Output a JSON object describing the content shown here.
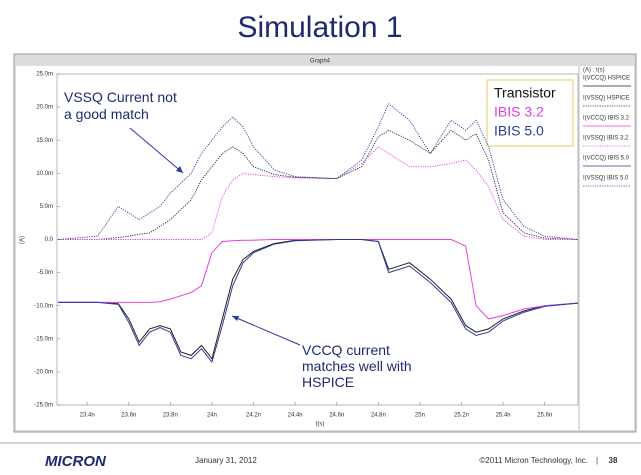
{
  "slide": {
    "title": "Simulation 1",
    "logo": "MICRON",
    "date": "January 31, 2012",
    "copyright": "©2011 Micron Technology, Inc.",
    "separator": "|",
    "page": "38"
  },
  "chart_data": {
    "type": "line",
    "title": "Graph4",
    "xlabel": "t(s)",
    "ylabel": "(A)",
    "legend_title": "(A) : t(s)",
    "legend": "right",
    "grid": false,
    "xlim": [
      23.255,
      25.76
    ],
    "xticks": [
      {
        "value": 23.4,
        "label": "23.4n"
      },
      {
        "value": 23.6,
        "label": "23.6n"
      },
      {
        "value": 23.8,
        "label": "23.8n"
      },
      {
        "value": 24.0,
        "label": "24n"
      },
      {
        "value": 24.2,
        "label": "24.2n"
      },
      {
        "value": 24.4,
        "label": "24.4n"
      },
      {
        "value": 24.6,
        "label": "24.6n"
      },
      {
        "value": 24.8,
        "label": "24.8n"
      },
      {
        "value": 25.0,
        "label": "25n"
      },
      {
        "value": 25.2,
        "label": "25.2n"
      },
      {
        "value": 25.4,
        "label": "25.4n"
      },
      {
        "value": 25.6,
        "label": "25.6n"
      }
    ],
    "ylim": [
      -25,
      25
    ],
    "yticks": [
      {
        "value": 25,
        "label": "25.0m"
      },
      {
        "value": 20,
        "label": "20.0m"
      },
      {
        "value": 15,
        "label": "15.0m"
      },
      {
        "value": 10,
        "label": "10.0m"
      },
      {
        "value": 5,
        "label": "5.0m"
      },
      {
        "value": 0,
        "label": "0.0"
      },
      {
        "value": -5,
        "label": "-5.0m"
      },
      {
        "value": -10,
        "label": "-10.0m"
      },
      {
        "value": -15,
        "label": "-15.0m"
      },
      {
        "value": -20,
        "label": "-20.0m"
      },
      {
        "value": -25,
        "label": "-25.0m"
      }
    ],
    "x": [
      23.26,
      23.45,
      23.55,
      23.6,
      23.65,
      23.7,
      23.75,
      23.8,
      23.85,
      23.9,
      23.95,
      24.0,
      24.05,
      24.1,
      24.15,
      24.2,
      24.3,
      24.4,
      24.6,
      24.72,
      24.8,
      24.85,
      24.95,
      25.05,
      25.15,
      25.22,
      25.27,
      25.33,
      25.4,
      25.5,
      25.6,
      25.76
    ],
    "series": [
      {
        "name": "I(VCCQ) HSPICE",
        "color": "#222222",
        "style": "solid",
        "values": [
          -9.5,
          -9.5,
          -9.7,
          -12,
          -15.5,
          -13.5,
          -13,
          -13.5,
          -17,
          -17.5,
          -16,
          -18,
          -12,
          -6,
          -3,
          -1.8,
          -0.6,
          -0.1,
          0,
          0,
          -0.3,
          -4.5,
          -3.5,
          -6,
          -9,
          -13,
          -14,
          -13.5,
          -12,
          -10.8,
          -10,
          -9.6
        ]
      },
      {
        "name": "I(VSSQ) HSPICE",
        "color": "#222222",
        "style": "dotted",
        "values": [
          0,
          0,
          0.3,
          0.5,
          0.8,
          1,
          2,
          3,
          4.5,
          6,
          9,
          11,
          13,
          14,
          13,
          11,
          9.8,
          9.4,
          9.2,
          11,
          15.5,
          16.5,
          15,
          13,
          16.5,
          15,
          16,
          12,
          4,
          1,
          0.2,
          0
        ]
      },
      {
        "name": "I(VCCQ) IBIS 3.2",
        "color": "#e040e0",
        "style": "solid",
        "values": [
          -9.5,
          -9.5,
          -9.5,
          -9.5,
          -9.5,
          -9.5,
          -9.4,
          -9,
          -8.5,
          -8,
          -7,
          -2,
          -0.3,
          -0.2,
          -0.1,
          -0.1,
          0,
          0,
          0,
          0,
          0,
          0,
          0,
          0,
          0,
          -1,
          -10,
          -12,
          -11.5,
          -10.5,
          -10,
          -9.6
        ]
      },
      {
        "name": "I(VSSQ) IBIS 3.2",
        "color": "#e040e0",
        "style": "dotted",
        "values": [
          0,
          0,
          0,
          0,
          0,
          0,
          0,
          0,
          0,
          0,
          0,
          1,
          6.5,
          9,
          10,
          9.8,
          9.5,
          9.3,
          9.2,
          11.5,
          14,
          13,
          11,
          11,
          11.5,
          12,
          10.5,
          8,
          3,
          0.5,
          0,
          0
        ]
      },
      {
        "name": "I(VCCQ) IBIS 5.0",
        "color": "#2a3a9a",
        "style": "solid",
        "values": [
          -9.5,
          -9.5,
          -9.8,
          -12.5,
          -16,
          -14,
          -13.3,
          -14,
          -17.5,
          -18,
          -16.5,
          -18.5,
          -13,
          -7,
          -3.5,
          -2,
          -0.7,
          -0.2,
          0,
          0,
          -0.3,
          -5,
          -4,
          -6.5,
          -9.5,
          -13.5,
          -14.5,
          -14,
          -12.3,
          -11,
          -10.1,
          -9.6
        ]
      },
      {
        "name": "I(VSSQ) IBIS 5.0",
        "color": "#2a3a9a",
        "style": "dotted",
        "values": [
          0,
          0.5,
          5,
          4,
          3,
          4,
          5,
          7,
          8.5,
          10,
          13,
          15,
          17,
          18.5,
          17,
          14,
          10.5,
          9.5,
          9.2,
          12,
          17,
          20.5,
          18,
          13,
          18,
          16.5,
          18,
          14,
          6,
          2,
          0.5,
          0
        ]
      }
    ],
    "key": [
      {
        "label": "Transistor",
        "color": "#111111"
      },
      {
        "label": "IBIS 3.2",
        "color": "#e040e0"
      },
      {
        "label": "IBIS 5.0",
        "color": "#2a3a9a"
      }
    ],
    "annotations": [
      [
        "VSSQ Current not",
        "a good match"
      ],
      [
        "VCCQ current",
        "matches well with",
        "HSPICE"
      ]
    ]
  }
}
